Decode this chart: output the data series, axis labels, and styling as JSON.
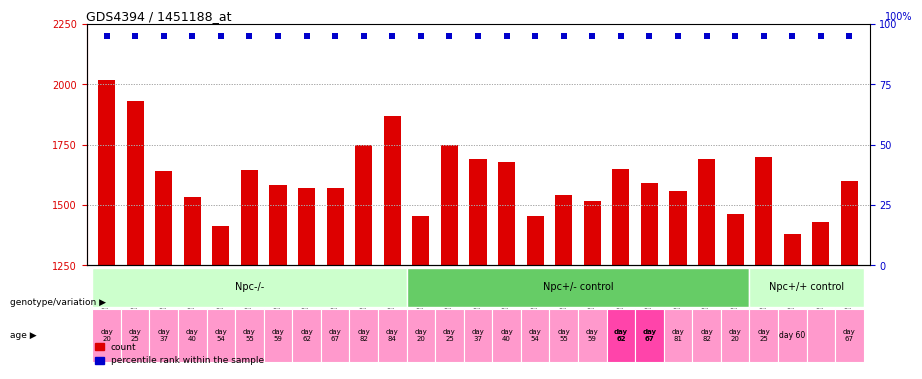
{
  "title": "GDS4394 / 1451188_at",
  "samples": [
    "GSM973242",
    "GSM973243",
    "GSM973246",
    "GSM973247",
    "GSM973250",
    "GSM973251",
    "GSM973256",
    "GSM973257",
    "GSM973260",
    "GSM973263",
    "GSM973264",
    "GSM973240",
    "GSM973241",
    "GSM973244",
    "GSM973245",
    "GSM973248",
    "GSM973249",
    "GSM973254",
    "GSM973255",
    "GSM973259",
    "GSM973261",
    "GSM973262",
    "GSM973238",
    "GSM973239",
    "GSM973252",
    "GSM973253",
    "GSM973258"
  ],
  "counts": [
    2020,
    1930,
    1640,
    1535,
    1415,
    1645,
    1585,
    1570,
    1570,
    1750,
    1870,
    1455,
    1750,
    1690,
    1680,
    1455,
    1540,
    1515,
    1650,
    1590,
    1560,
    1690,
    1465,
    1700,
    1380,
    1430,
    1600
  ],
  "percentile_ranks": [
    97,
    97,
    97,
    97,
    97,
    97,
    97,
    97,
    97,
    97,
    97,
    97,
    97,
    97,
    97,
    97,
    97,
    97,
    97,
    97,
    97,
    97,
    97,
    97,
    97,
    97,
    97
  ],
  "groups": [
    {
      "label": "Npc-/-",
      "start": 0,
      "end": 11,
      "color": "#aaffaa"
    },
    {
      "label": "Npc+/- control",
      "start": 11,
      "end": 23,
      "color": "#55dd55"
    },
    {
      "label": "Npc+/+ control",
      "start": 23,
      "end": 27,
      "color": "#aaffaa"
    }
  ],
  "ages": [
    "20",
    "25",
    "37",
    "40",
    "54",
    "55",
    "59",
    "62",
    "67",
    "82",
    "84",
    "20",
    "25",
    "37",
    "40",
    "54",
    "55",
    "59",
    "62",
    "67",
    "81",
    "82",
    "20",
    "25",
    "60",
    "",
    "67"
  ],
  "age_bold": [
    18,
    19
  ],
  "age_wide": [
    24
  ],
  "bar_color": "#dd0000",
  "dot_color": "#0000cc",
  "ylim": [
    1250,
    2250
  ],
  "yticks": [
    1250,
    1500,
    1750,
    2000,
    2250
  ],
  "right_yticks": [
    0,
    25,
    50,
    75,
    100
  ],
  "right_ylabel_color": "#0000cc",
  "left_ylabel_color": "#dd0000",
  "background_color": "#ffffff",
  "grid_color": "#aaaaaa"
}
